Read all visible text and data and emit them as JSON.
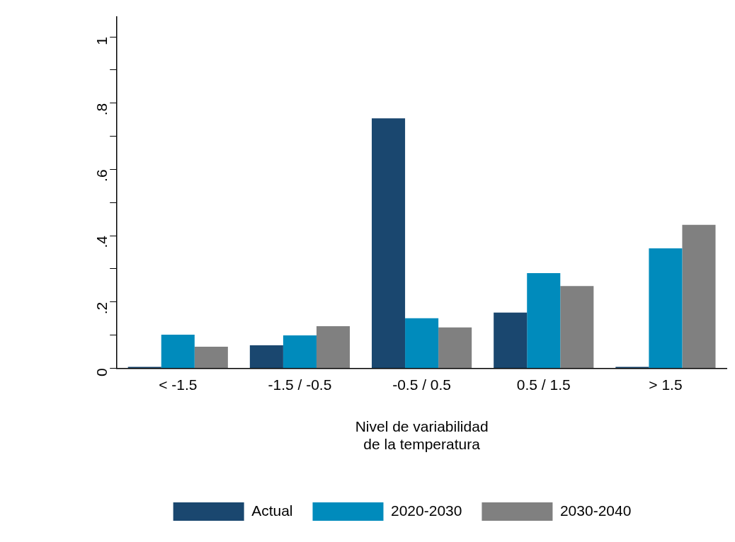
{
  "chart_data": {
    "type": "bar",
    "xlabel": "Nivel de variabilidad\nde la temperatura",
    "categories": [
      "< -1.5",
      "-1.5 / -0.5",
      "-0.5 / 0.5",
      "0.5 / 1.5",
      "> 1.5"
    ],
    "series": [
      {
        "name": "Actual",
        "color": "#1a476f",
        "values": [
          0.004,
          0.069,
          0.754,
          0.168,
          0.004
        ]
      },
      {
        "name": "2020-2030",
        "color": "#008bbc",
        "values": [
          0.101,
          0.099,
          0.151,
          0.287,
          0.362
        ]
      },
      {
        "name": "2030-2040",
        "color": "#808080",
        "values": [
          0.065,
          0.127,
          0.123,
          0.248,
          0.433
        ]
      }
    ],
    "ylim": [
      0,
      1.06
    ],
    "yticks": [
      0,
      {
        "value": 0.1,
        "label": null
      },
      {
        "value": 0.2,
        "label": ".2"
      },
      {
        "value": 0.3,
        "label": null
      },
      {
        "value": 0.4,
        "label": ".4"
      },
      {
        "value": 0.5,
        "label": null
      },
      {
        "value": 0.6,
        "label": ".6"
      },
      {
        "value": 0.7,
        "label": null
      },
      {
        "value": 0.8,
        "label": ".8"
      },
      {
        "value": 0.9,
        "label": null
      },
      1
    ],
    "grid": false,
    "legend": "bottom"
  }
}
